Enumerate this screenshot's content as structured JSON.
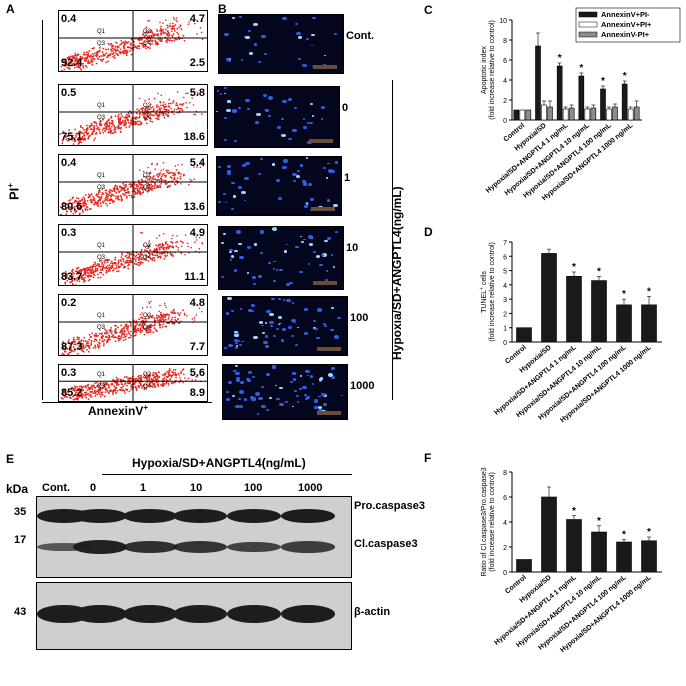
{
  "panel_a": {
    "letter": "A",
    "y_axis": "PI",
    "y_axis_sup": "+",
    "x_axis": "AnnexinV",
    "x_axis_sup": "+",
    "quadrant_names": [
      "Q1",
      "Q2",
      "Q3",
      "Q4"
    ],
    "plots": [
      {
        "q1": "0.4",
        "q2": "4.7",
        "q3": "92.4",
        "q4": "2.5"
      },
      {
        "q1": "0.5",
        "q2": "5.8",
        "q3": "75.1",
        "q4": "18.6"
      },
      {
        "q1": "0.4",
        "q2": "5.4",
        "q3": "80.6",
        "q4": "13.6"
      },
      {
        "q1": "0.3",
        "q2": "4.9",
        "q3": "83.7",
        "q4": "11.1"
      },
      {
        "q1": "0.2",
        "q2": "4.8",
        "q3": "87.3",
        "q4": "7.7"
      },
      {
        "q1": "0.3",
        "q2": "5.6",
        "q3": "85.2",
        "q4": "8.9"
      }
    ]
  },
  "panel_b": {
    "letter": "B",
    "conditions": [
      "Cont.",
      "0",
      "1",
      "10",
      "100",
      "1000"
    ],
    "group_label": "Hypoxia/SD+ANGPTL4(ng/mL)"
  },
  "chart_data": [
    {
      "id": "C",
      "type": "bar",
      "letter": "C",
      "ylabel": "Apoptotic index",
      "ylabel2": "(fold increase relative to control)",
      "ylim": [
        0,
        10
      ],
      "yticks": [
        0,
        2,
        4,
        6,
        8,
        10
      ],
      "categories": [
        "Control",
        "Hypoxia/SD",
        "Hypoxia/SD+ANGPTL4 1 ng/mL",
        "Hypoxia/SD+ANGPTL4 10 ng/mL",
        "Hypoxia/SD+ANGPTL4 100 ng/mL",
        "Hypoxia/SD+ANGPTL4 1000 ng/mL"
      ],
      "series": [
        {
          "name": "AnnexinV+PI-",
          "color": "#1a1a1a",
          "values": [
            1,
            7.4,
            5.4,
            4.4,
            3.1,
            3.6
          ],
          "errors": [
            0,
            1.3,
            0.3,
            0.3,
            0.3,
            0.3
          ]
        },
        {
          "name": "AnnexinV+PI+",
          "color": "#ffffff",
          "values": [
            1,
            1.5,
            1.1,
            1.1,
            1.1,
            1.1
          ],
          "errors": [
            0,
            0.4,
            0.2,
            0.2,
            0.2,
            0.2
          ]
        },
        {
          "name": "AnnexinV-PI+",
          "color": "#8c8c8c",
          "values": [
            1,
            1.3,
            1.2,
            1.2,
            1.3,
            1.3
          ],
          "errors": [
            0,
            0.6,
            0.3,
            0.3,
            0.3,
            0.6
          ]
        }
      ],
      "significance": [
        false,
        false,
        true,
        true,
        true,
        true
      ],
      "marker": "*",
      "legend_position": "top-right",
      "grid": false
    },
    {
      "id": "D",
      "type": "bar",
      "letter": "D",
      "ylabel": "TUNEL",
      "ylabel_sup": "+",
      "ylabel_after": " cells",
      "ylabel2": "(fold increase relative to control)",
      "ylim": [
        0,
        7
      ],
      "yticks": [
        0,
        1,
        2,
        3,
        4,
        5,
        6,
        7
      ],
      "categories": [
        "Control",
        "Hypoxia/SD",
        "Hypoxia/SD+ANGPTL4 1 ng/mL",
        "Hypoxia/SD+ANGPTL4 10 ng/mL",
        "Hypoxia/SD+ANGPTL4 100 ng/mL",
        "Hypoxia/SD+ANGPTL4 1000 ng/mL"
      ],
      "series": [
        {
          "color": "#1a1a1a",
          "values": [
            1,
            6.2,
            4.6,
            4.3,
            2.6,
            2.6
          ],
          "errors": [
            0,
            0.3,
            0.3,
            0.3,
            0.4,
            0.6
          ]
        }
      ],
      "significance": [
        false,
        false,
        true,
        true,
        true,
        true
      ],
      "marker": "*",
      "grid": false
    },
    {
      "id": "F",
      "type": "bar",
      "letter": "F",
      "ylabel": "Ratio of Cl.caspase3/Pro.caspase3",
      "ylabel2": "(fold increase relative to control)",
      "ylim": [
        0,
        8
      ],
      "yticks": [
        0,
        2,
        4,
        6,
        8
      ],
      "categories": [
        "Control",
        "Hypoxia/SD",
        "Hypoxia/SD+ANGPTL4 1 ng/mL",
        "Hypoxia/SD+ANGPTL4 10 ng/mL",
        "Hypoxia/SD+ANGPTL4 100 ng/mL",
        "Hypoxia/SD+ANGPTL4 1000 ng/mL"
      ],
      "series": [
        {
          "color": "#1a1a1a",
          "values": [
            1,
            6.0,
            4.2,
            3.2,
            2.4,
            2.5
          ],
          "errors": [
            0,
            0.8,
            0.3,
            0.5,
            0.2,
            0.3
          ]
        }
      ],
      "significance": [
        false,
        false,
        true,
        true,
        true,
        true
      ],
      "marker": "*",
      "grid": false
    }
  ],
  "panel_e": {
    "letter": "E",
    "group_label": "Hypoxia/SD+ANGPTL4(ng/mL)",
    "kda_label": "kDa",
    "lanes": [
      "Cont.",
      "0",
      "1",
      "10",
      "100",
      "1000"
    ],
    "markers": [
      "35",
      "17",
      "43"
    ],
    "bands": [
      "Pro.caspase3",
      "Cl.caspase3",
      "β-actin"
    ],
    "cl_caspase3_relative_intensity": [
      0.35,
      0.95,
      0.8,
      0.75,
      0.6,
      0.65
    ]
  }
}
